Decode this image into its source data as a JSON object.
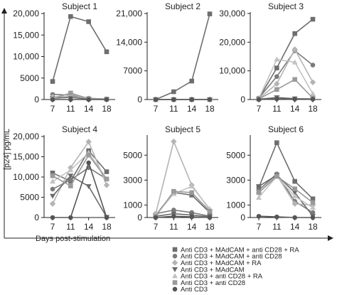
{
  "figure": {
    "ylabel": "[p24] pg/mL",
    "xlabel": "Days post-stimulation"
  },
  "legend": [
    {
      "label": "Anti CD3 + MAdCAM + anti CD28 + RA",
      "color": "#6e6e6e",
      "marker": "square"
    },
    {
      "label": "Anti CD3 + MAdCAM + anti CD28",
      "color": "#7a7a7a",
      "marker": "circle"
    },
    {
      "label": "Anti CD3 + MAdCAM + RA",
      "color": "#b4b4b4",
      "marker": "diamond"
    },
    {
      "label": "Anti CD3 + MAdCAM",
      "color": "#6a6a6a",
      "marker": "triangle-down"
    },
    {
      "label": "Anti CD3 + anti CD28 + RA",
      "color": "#c2c2c2",
      "marker": "triangle-up"
    },
    {
      "label": "Anti CD3 + anti CD28",
      "color": "#9a9a9a",
      "marker": "square"
    },
    {
      "label": "Anti CD3",
      "color": "#555555",
      "marker": "circle"
    }
  ],
  "chart_data": [
    {
      "type": "line",
      "title": "Subject 1",
      "categories": [
        "7",
        "11",
        "14",
        "18"
      ],
      "yticks": [
        "0",
        "5000",
        "10,000",
        "15,000",
        "20,000"
      ],
      "ylim": [
        0,
        20000
      ],
      "series": [
        {
          "name": "Anti CD3 + MAdCAM + anti CD28 + RA",
          "values": [
            4200,
            19300,
            18100,
            11100
          ]
        },
        {
          "name": "Anti CD3 + MAdCAM + anti CD28",
          "values": [
            1200,
            1000,
            300,
            100
          ]
        },
        {
          "name": "Anti CD3 + MAdCAM + RA",
          "values": [
            600,
            700,
            200,
            50
          ]
        },
        {
          "name": "Anti CD3 + MAdCAM",
          "values": [
            300,
            500,
            100,
            0
          ]
        },
        {
          "name": "Anti CD3 + anti CD28 + RA",
          "values": [
            500,
            1300,
            200,
            100
          ]
        },
        {
          "name": "Anti CD3 + anti CD28",
          "values": [
            200,
            1500,
            200,
            100
          ]
        },
        {
          "name": "Anti CD3",
          "values": [
            0,
            0,
            0,
            0
          ]
        }
      ]
    },
    {
      "type": "line",
      "title": "Subject 2",
      "categories": [
        "7",
        "11",
        "14",
        "18"
      ],
      "yticks": [
        "0",
        "7000",
        "14,000",
        "21,000"
      ],
      "ylim": [
        0,
        21000
      ],
      "series": [
        {
          "name": "Anti CD3 + MAdCAM + anti CD28 + RA",
          "values": [
            0,
            1900,
            4500,
            20900
          ]
        },
        {
          "name": "Anti CD3 + MAdCAM + anti CD28",
          "values": [
            0,
            0,
            0,
            0
          ]
        },
        {
          "name": "Anti CD3 + MAdCAM + RA",
          "values": [
            0,
            0,
            0,
            0
          ]
        },
        {
          "name": "Anti CD3 + MAdCAM",
          "values": [
            0,
            0,
            0,
            0
          ]
        },
        {
          "name": "Anti CD3 + anti CD28 + RA",
          "values": [
            0,
            0,
            0,
            0
          ]
        },
        {
          "name": "Anti CD3 + anti CD28",
          "values": [
            0,
            0,
            0,
            0
          ]
        },
        {
          "name": "Anti CD3",
          "values": [
            0,
            0,
            0,
            0
          ]
        }
      ]
    },
    {
      "type": "line",
      "title": "Subject 3",
      "categories": [
        "7",
        "11",
        "14",
        "18"
      ],
      "yticks": [
        "0",
        "10,000",
        "20,000",
        "30,000"
      ],
      "ylim": [
        0,
        30000
      ],
      "series": [
        {
          "name": "Anti CD3 + MAdCAM + anti CD28 + RA",
          "values": [
            300,
            11000,
            23000,
            28000
          ]
        },
        {
          "name": "Anti CD3 + MAdCAM + anti CD28",
          "values": [
            500,
            8000,
            17000,
            12000
          ]
        },
        {
          "name": "Anti CD3 + MAdCAM + RA",
          "values": [
            200,
            5500,
            17500,
            6000
          ]
        },
        {
          "name": "Anti CD3 + MAdCAM",
          "values": [
            100,
            700,
            300,
            200
          ]
        },
        {
          "name": "Anti CD3 + anti CD28 + RA",
          "values": [
            300,
            14000,
            13000,
            2000
          ]
        },
        {
          "name": "Anti CD3 + anti CD28",
          "values": [
            200,
            3500,
            7000,
            500
          ]
        },
        {
          "name": "Anti CD3",
          "values": [
            0,
            200,
            100,
            100
          ]
        }
      ]
    },
    {
      "type": "line",
      "title": "Subject 4",
      "categories": [
        "7",
        "11",
        "14",
        "18"
      ],
      "yticks": [
        "0",
        "5000",
        "10,000",
        "15,000",
        "20,000"
      ],
      "ylim": [
        0,
        20000
      ],
      "series": [
        {
          "name": "Anti CD3 + MAdCAM + anti CD28 + RA",
          "values": [
            11000,
            9000,
            16500,
            11300
          ]
        },
        {
          "name": "Anti CD3 + MAdCAM + anti CD28",
          "values": [
            7000,
            9300,
            12300,
            9500
          ]
        },
        {
          "name": "Anti CD3 + MAdCAM + RA",
          "values": [
            3400,
            12300,
            18700,
            8000
          ]
        },
        {
          "name": "Anti CD3 + MAdCAM",
          "values": [
            5300,
            10300,
            7700,
            100
          ]
        },
        {
          "name": "Anti CD3 + anti CD28 + RA",
          "values": [
            8900,
            11700,
            16000,
            9500
          ]
        },
        {
          "name": "Anti CD3 + anti CD28",
          "values": [
            10300,
            7800,
            15400,
            9500
          ]
        },
        {
          "name": "Anti CD3",
          "values": [
            0,
            0,
            13500,
            0
          ]
        }
      ]
    },
    {
      "type": "line",
      "title": "Subject 5",
      "categories": [
        "7",
        "11",
        "14",
        "18"
      ],
      "yticks": [
        "0",
        "1000",
        "3000",
        "5000"
      ],
      "ylim": [
        0,
        6500
      ],
      "series": [
        {
          "name": "Anti CD3 + MAdCAM + anti CD28 + RA",
          "values": [
            200,
            2000,
            1800,
            400
          ]
        },
        {
          "name": "Anti CD3 + MAdCAM + anti CD28",
          "values": [
            300,
            600,
            400,
            100
          ]
        },
        {
          "name": "Anti CD3 + MAdCAM + RA",
          "values": [
            300,
            6100,
            2600,
            600
          ]
        },
        {
          "name": "Anti CD3 + MAdCAM",
          "values": [
            100,
            300,
            200,
            50
          ]
        },
        {
          "name": "Anti CD3 + anti CD28 + RA",
          "values": [
            200,
            1900,
            2500,
            700
          ]
        },
        {
          "name": "Anti CD3 + anti CD28",
          "values": [
            100,
            2100,
            2000,
            500
          ]
        },
        {
          "name": "Anti CD3",
          "values": [
            0,
            100,
            50,
            0
          ]
        }
      ]
    },
    {
      "type": "line",
      "title": "Subject 6",
      "categories": [
        "7",
        "11",
        "14",
        "18"
      ],
      "yticks": [
        "0",
        "1000",
        "3000",
        "5000"
      ],
      "ylim": [
        0,
        6500
      ],
      "series": [
        {
          "name": "Anti CD3 + MAdCAM + anti CD28 + RA",
          "values": [
            2400,
            6000,
            2900,
            1500
          ]
        },
        {
          "name": "Anti CD3 + MAdCAM + anti CD28",
          "values": [
            2200,
            3500,
            1300,
            400
          ]
        },
        {
          "name": "Anti CD3 + MAdCAM + RA",
          "values": [
            2000,
            3400,
            1100,
            1000
          ]
        },
        {
          "name": "Anti CD3 + MAdCAM",
          "values": [
            2500,
            3400,
            2000,
            100
          ]
        },
        {
          "name": "Anti CD3 + anti CD28 + RA",
          "values": [
            1600,
            3300,
            1700,
            800
          ]
        },
        {
          "name": "Anti CD3 + anti CD28",
          "values": [
            2000,
            3300,
            2300,
            1200
          ]
        },
        {
          "name": "Anti CD3",
          "values": [
            100,
            50,
            0,
            0
          ]
        }
      ]
    }
  ]
}
